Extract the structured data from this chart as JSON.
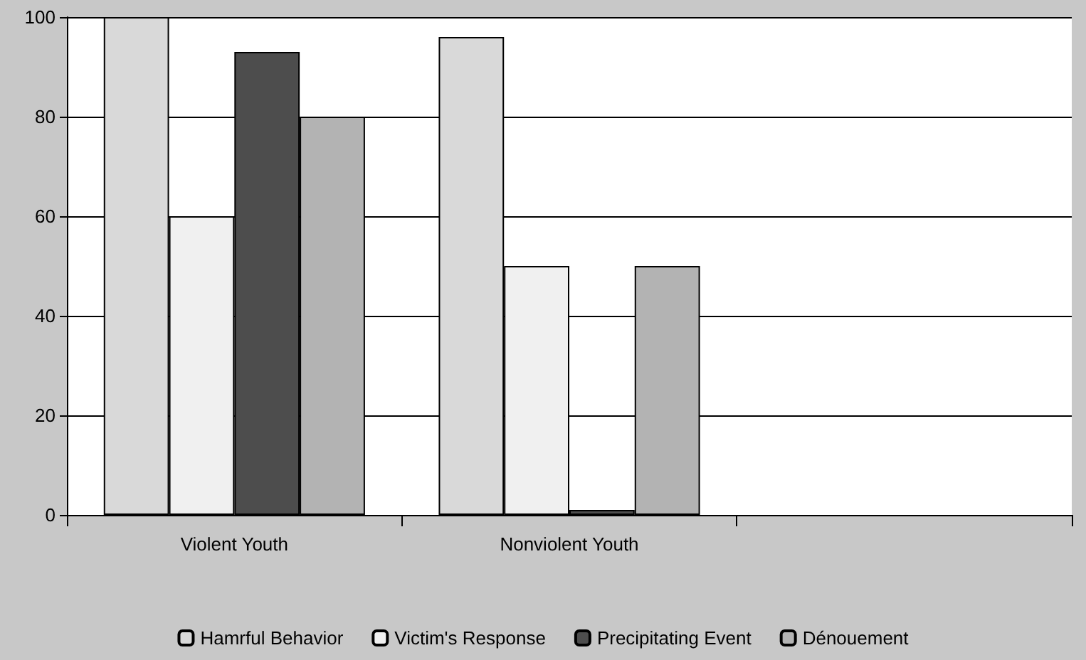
{
  "chart_data": {
    "type": "bar",
    "categories": [
      "Violent Youth",
      "Nonviolent Youth",
      null
    ],
    "series": [
      {
        "name": "Hamrful Behavior",
        "color": "#d9d9d9",
        "values": [
          100,
          96,
          null
        ]
      },
      {
        "name": "Victim's Response",
        "color": "#f0f0f0",
        "values": [
          60,
          50,
          null
        ]
      },
      {
        "name": "Precipitating Event",
        "color": "#4d4d4d",
        "values": [
          93,
          1,
          null
        ]
      },
      {
        "name": "Dénouement",
        "color": "#b3b3b3",
        "values": [
          80,
          50,
          null
        ]
      }
    ],
    "ylim": [
      0,
      100
    ],
    "yticks": [
      0,
      20,
      40,
      60,
      80,
      100
    ],
    "grid": "y",
    "legend": "bottom"
  }
}
